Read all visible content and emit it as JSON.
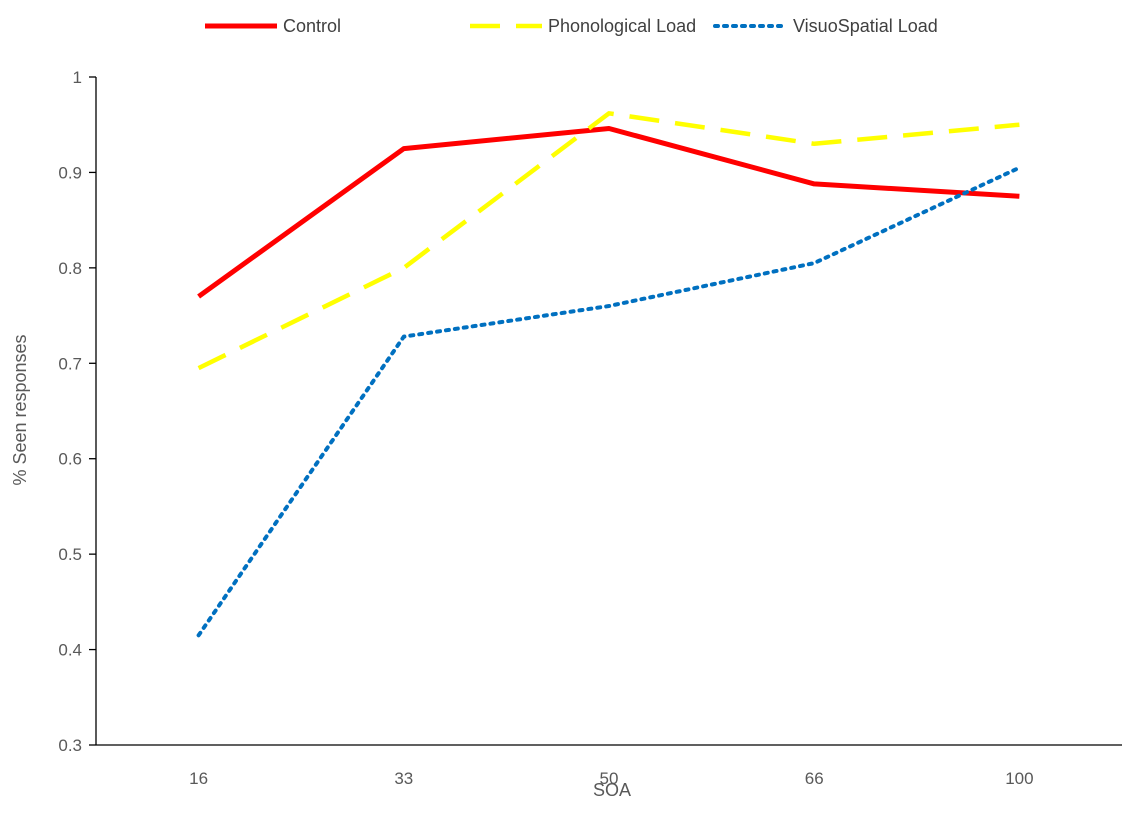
{
  "chart_data": {
    "type": "line",
    "categories": [
      "16",
      "33",
      "50",
      "66",
      "100"
    ],
    "series": [
      {
        "name": "Control",
        "values": [
          0.77,
          0.925,
          0.946,
          0.888,
          0.875
        ],
        "color": "#FF0000",
        "dash": "solid"
      },
      {
        "name": "Phonological Load",
        "values": [
          0.695,
          0.8,
          0.962,
          0.93,
          0.95
        ],
        "color": "#FFFF00",
        "dash": "dashed"
      },
      {
        "name": "VisuoSpatial Load",
        "values": [
          0.415,
          0.728,
          0.76,
          0.805,
          0.905
        ],
        "color": "#0070C0",
        "dash": "dotted"
      }
    ],
    "xlabel": "SOA",
    "ylabel": "% Seen responses",
    "ylim": [
      0.3,
      1.0
    ],
    "yticks": [
      "0.3",
      "0.4",
      "0.5",
      "0.6",
      "0.7",
      "0.8",
      "0.9",
      "1"
    ],
    "grid": false,
    "legend_position": "top"
  }
}
